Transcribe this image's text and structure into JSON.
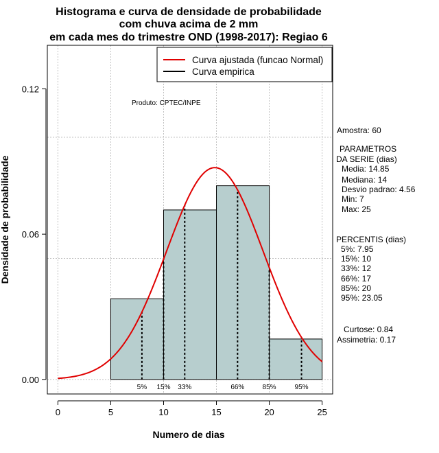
{
  "chart_data": {
    "type": "bar",
    "title_lines": [
      "Histograma e curva de densidade de probabilidade",
      "com chuva acima de 2 mm",
      "em cada mes do trimestre OND (1998-2017): Regiao 6"
    ],
    "xlabel": "Numero de dias",
    "ylabel": "Densidade de probabilidade",
    "xlim": [
      -1,
      26
    ],
    "ylim": [
      -0.006,
      0.138
    ],
    "x_ticks": [
      0,
      5,
      10,
      15,
      20,
      25
    ],
    "x_tick_labels": [
      "0",
      "5",
      "10",
      "15",
      "20",
      "25"
    ],
    "y_ticks": [
      0.0,
      0.06,
      0.12
    ],
    "y_tick_labels": [
      "0.00",
      "0.06",
      "0.12"
    ],
    "grid_x": [
      0,
      5,
      10,
      15,
      20,
      25
    ],
    "grid_y": [
      0.0,
      0.05,
      0.1
    ],
    "bins": [
      {
        "start": 5,
        "end": 10,
        "density": 0.0333
      },
      {
        "start": 10,
        "end": 15,
        "density": 0.07
      },
      {
        "start": 15,
        "end": 20,
        "density": 0.08
      },
      {
        "start": 20,
        "end": 25,
        "density": 0.0167
      }
    ],
    "normal_fit": {
      "mean": 14.85,
      "sd": 4.56,
      "x_range": [
        0,
        25
      ]
    },
    "percentile_lines": [
      {
        "label": "5%",
        "x": 7.95
      },
      {
        "label": "15%",
        "x": 10
      },
      {
        "label": "33%",
        "x": 12
      },
      {
        "label": "66%",
        "x": 17
      },
      {
        "label": "85%",
        "x": 20
      },
      {
        "label": "95%",
        "x": 23.05
      }
    ],
    "legend": [
      {
        "label": "Curva ajustada (funcao Normal)",
        "color": "#e00000"
      },
      {
        "label": "Curva empirica",
        "color": "#000000"
      }
    ],
    "legend_position": "top-right",
    "annotation": "Produto: CPTEC/INPE",
    "colors": {
      "bar_fill": "#b7cece",
      "curve": "#e00000",
      "grid": "#c0c0c0"
    }
  },
  "side_panel": {
    "sample": "Amostra: 60",
    "params_title_1": "PARAMETROS",
    "params_title_2": "DA SERIE (dias)",
    "params": [
      "Media: 14.85",
      "Mediana: 14",
      "Desvio padrao: 4.56",
      "Min: 7",
      "Max: 25"
    ],
    "percentis_title": "PERCENTIS (dias)",
    "percentis": [
      "5%: 7.95",
      "15%: 10",
      "33%: 12",
      "66%: 17",
      "85%: 20",
      "95%: 23.05"
    ],
    "curtose": "Curtose: 0.84",
    "assimetria": "Assimetria: 0.17"
  }
}
